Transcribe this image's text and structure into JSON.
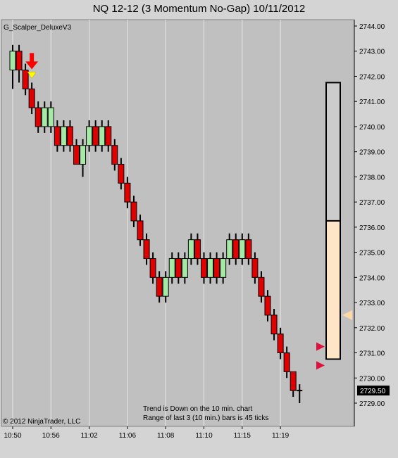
{
  "window": {
    "title": "NQ 12-12 (3 Momentum No-Gap)  10/11/2012"
  },
  "indicator_name": "G_Scalper_DeluxeV3",
  "copyright": "© 2012 NinjaTrader, LLC",
  "notes": [
    "Trend is Down on the 10 min. chart",
    "Range of last 3 (10 min.) bars is 45 ticks"
  ],
  "last_price_label": "2729.50",
  "colors": {
    "background": "#c0c0c0",
    "up_bar": "#a6e8a6",
    "down_bar": "#e00000",
    "wick": "#000000",
    "signal_arrow": "#ff0000",
    "signal_marker": "#ffff00",
    "range_box_upper": "#cccccc",
    "range_box_lower": "#ffe5c8",
    "pointer_red": "#e0103c",
    "pointer_peach": "#ffd8a8"
  },
  "chart_data": {
    "type": "candlestick",
    "y_axis": {
      "min": 2729.0,
      "max": 2744.0,
      "ticks": [
        "2744.00",
        "2743.00",
        "2742.00",
        "2741.00",
        "2740.00",
        "2739.00",
        "2738.00",
        "2737.00",
        "2736.00",
        "2735.00",
        "2734.00",
        "2733.00",
        "2732.00",
        "2731.00",
        "2730.00",
        "2729.00"
      ]
    },
    "x_axis": {
      "ticks": [
        {
          "label": "10:50",
          "bar": 0
        },
        {
          "label": "10:56",
          "bar": 6
        },
        {
          "label": "11:02",
          "bar": 12
        },
        {
          "label": "11:06",
          "bar": 18
        },
        {
          "label": "11:08",
          "bar": 24
        },
        {
          "label": "11:10",
          "bar": 30
        },
        {
          "label": "11:15",
          "bar": 36
        },
        {
          "label": "11:19",
          "bar": 42
        }
      ]
    },
    "bars": [
      {
        "open": 2742.25,
        "close": 2743.0,
        "high": 2743.25,
        "low": 2741.5
      },
      {
        "open": 2743.0,
        "close": 2742.25,
        "high": 2743.25,
        "low": 2741.75
      },
      {
        "open": 2742.25,
        "close": 2741.5,
        "high": 2742.5,
        "low": 2741.25
      },
      {
        "open": 2741.5,
        "close": 2740.75,
        "high": 2741.75,
        "low": 2740.5
      },
      {
        "open": 2740.75,
        "close": 2740.0,
        "high": 2741.0,
        "low": 2739.75
      },
      {
        "open": 2740.0,
        "close": 2740.75,
        "high": 2741.0,
        "low": 2739.75
      },
      {
        "open": 2740.0,
        "close": 2740.75,
        "high": 2741.0,
        "low": 2739.75
      },
      {
        "open": 2740.0,
        "close": 2739.25,
        "high": 2740.25,
        "low": 2739.0
      },
      {
        "open": 2739.25,
        "close": 2740.0,
        "high": 2740.25,
        "low": 2739.0
      },
      {
        "open": 2740.0,
        "close": 2739.25,
        "high": 2740.25,
        "low": 2739.0
      },
      {
        "open": 2739.25,
        "close": 2738.5,
        "high": 2739.5,
        "low": 2738.5
      },
      {
        "open": 2738.5,
        "close": 2739.25,
        "high": 2739.5,
        "low": 2738.0
      },
      {
        "open": 2739.25,
        "close": 2740.0,
        "high": 2740.25,
        "low": 2739.0
      },
      {
        "open": 2740.0,
        "close": 2739.25,
        "high": 2740.25,
        "low": 2739.0
      },
      {
        "open": 2739.25,
        "close": 2740.0,
        "high": 2740.25,
        "low": 2739.0
      },
      {
        "open": 2740.0,
        "close": 2739.25,
        "high": 2740.25,
        "low": 2739.0
      },
      {
        "open": 2739.25,
        "close": 2738.5,
        "high": 2739.5,
        "low": 2738.25
      },
      {
        "open": 2738.5,
        "close": 2737.75,
        "high": 2738.75,
        "low": 2737.5
      },
      {
        "open": 2737.75,
        "close": 2737.0,
        "high": 2738.0,
        "low": 2736.75
      },
      {
        "open": 2737.0,
        "close": 2736.25,
        "high": 2737.25,
        "low": 2736.0
      },
      {
        "open": 2736.25,
        "close": 2735.5,
        "high": 2736.5,
        "low": 2735.25
      },
      {
        "open": 2735.5,
        "close": 2734.75,
        "high": 2735.75,
        "low": 2734.5
      },
      {
        "open": 2734.75,
        "close": 2734.0,
        "high": 2735.0,
        "low": 2733.75
      },
      {
        "open": 2734.0,
        "close": 2733.25,
        "high": 2734.25,
        "low": 2733.0
      },
      {
        "open": 2733.25,
        "close": 2734.0,
        "high": 2734.25,
        "low": 2733.0
      },
      {
        "open": 2734.0,
        "close": 2734.75,
        "high": 2735.0,
        "low": 2733.75
      },
      {
        "open": 2734.75,
        "close": 2734.0,
        "high": 2735.0,
        "low": 2733.75
      },
      {
        "open": 2734.0,
        "close": 2734.75,
        "high": 2735.0,
        "low": 2733.75
      },
      {
        "open": 2734.75,
        "close": 2735.5,
        "high": 2735.75,
        "low": 2734.5
      },
      {
        "open": 2735.5,
        "close": 2734.75,
        "high": 2735.75,
        "low": 2734.5
      },
      {
        "open": 2734.75,
        "close": 2734.0,
        "high": 2735.0,
        "low": 2733.75
      },
      {
        "open": 2734.0,
        "close": 2734.75,
        "high": 2735.0,
        "low": 2733.75
      },
      {
        "open": 2734.75,
        "close": 2734.0,
        "high": 2735.0,
        "low": 2733.75
      },
      {
        "open": 2734.0,
        "close": 2734.75,
        "high": 2735.0,
        "low": 2733.75
      },
      {
        "open": 2734.75,
        "close": 2735.5,
        "high": 2735.75,
        "low": 2734.5
      },
      {
        "open": 2735.5,
        "close": 2734.75,
        "high": 2735.75,
        "low": 2734.5
      },
      {
        "open": 2734.75,
        "close": 2735.5,
        "high": 2735.75,
        "low": 2734.5
      },
      {
        "open": 2735.5,
        "close": 2734.75,
        "high": 2735.75,
        "low": 2734.5
      },
      {
        "open": 2734.75,
        "close": 2734.0,
        "high": 2735.0,
        "low": 2733.75
      },
      {
        "open": 2734.0,
        "close": 2733.25,
        "high": 2734.25,
        "low": 2733.0
      },
      {
        "open": 2733.25,
        "close": 2732.5,
        "high": 2733.5,
        "low": 2732.25
      },
      {
        "open": 2732.5,
        "close": 2731.75,
        "high": 2732.75,
        "low": 2731.5
      },
      {
        "open": 2731.75,
        "close": 2731.0,
        "high": 2732.0,
        "low": 2730.75
      },
      {
        "open": 2731.0,
        "close": 2730.25,
        "high": 2731.25,
        "low": 2730.0
      },
      {
        "open": 2730.25,
        "close": 2729.5,
        "high": 2730.25,
        "low": 2729.25
      },
      {
        "open": 2729.5,
        "close": 2729.5,
        "high": 2729.75,
        "low": 2729.0
      }
    ],
    "signal_bar": 3,
    "range_box": {
      "top": 2741.75,
      "mid": 2736.25,
      "bottom": 2730.75
    },
    "pointers": [
      {
        "price": 2731.25,
        "color": "red"
      },
      {
        "price": 2730.5,
        "color": "red"
      },
      {
        "price": 2732.5,
        "color": "peach"
      }
    ]
  }
}
